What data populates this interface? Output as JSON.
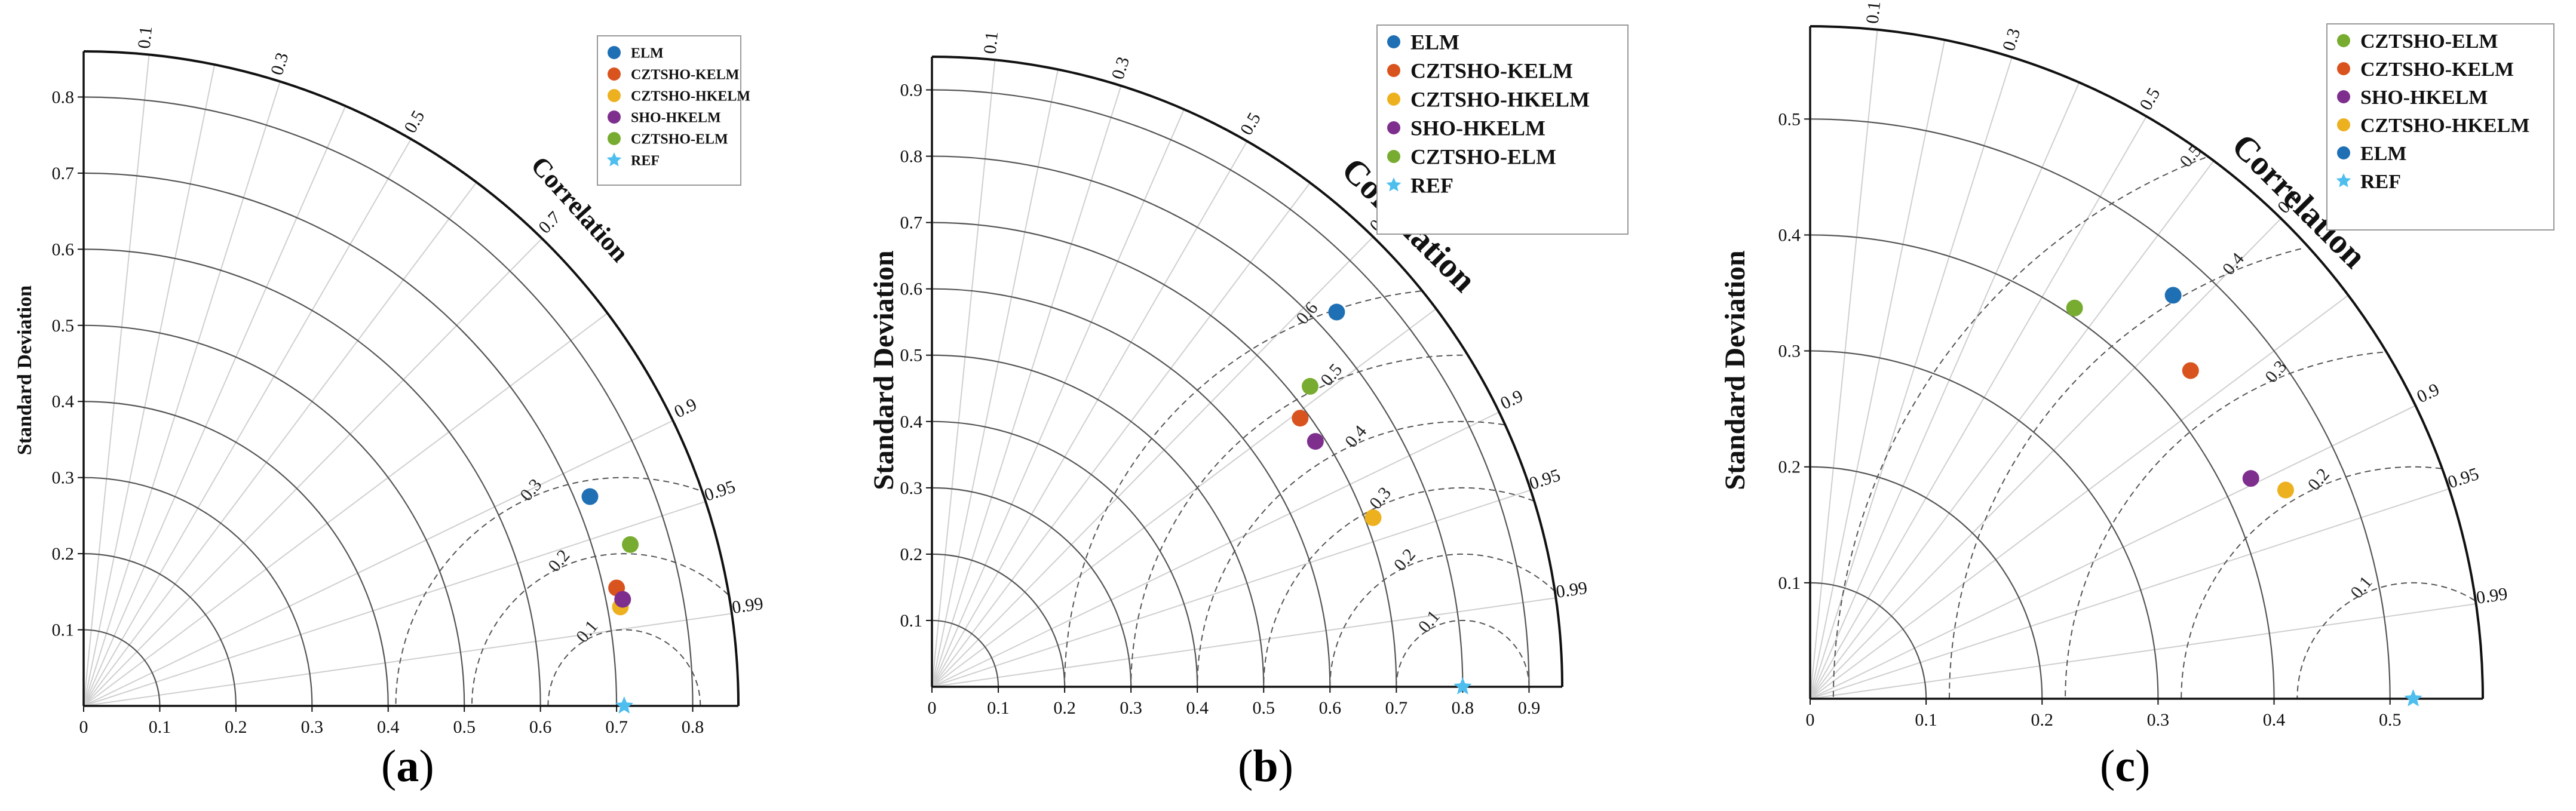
{
  "figure": {
    "panel_labels": [
      "(a)",
      "(b)",
      "(c)"
    ],
    "panel_letters": [
      "a",
      "b",
      "c"
    ]
  },
  "colors": {
    "ELM": "#1f6fb4",
    "CZTSHO-KELM": "#d9531e",
    "CZTSHO-HKELM": "#edb120",
    "SHO-HKELM": "#7e2f8e",
    "CZTSHO-ELM": "#77ac30",
    "REF": "#4dbeee"
  },
  "chart_data": [
    {
      "type": "scatter",
      "subtype": "taylor-diagram",
      "panel": "a",
      "ylabel": "Standard Deviation",
      "correlation_label": "Correlation",
      "std_max": 0.86,
      "std_ticks": [
        0.1,
        0.2,
        0.3,
        0.4,
        0.5,
        0.6,
        0.7,
        0.8
      ],
      "x_tick_labels": [
        "0",
        "0.1",
        "0.2",
        "0.3",
        "0.4",
        "0.5",
        "0.6",
        "0.7",
        "0.8"
      ],
      "y_tick_labels": [
        "0.1",
        "0.2",
        "0.3",
        "0.4",
        "0.5",
        "0.6",
        "0.7",
        "0.8"
      ],
      "correlation_ticks": [
        0.1,
        0.3,
        0.5,
        0.7,
        0.9,
        0.95,
        0.99
      ],
      "correlation_tick_labels": [
        "0.1",
        "0.3",
        "0.5",
        "0.7",
        "0.9",
        "0.95",
        "0.99"
      ],
      "rms_arcs": [
        0.1,
        0.2,
        0.3
      ],
      "rms_labels": [
        "0.1",
        "0.2",
        "0.3"
      ],
      "reference_std": 0.71,
      "legend_position": "top-right",
      "series": [
        {
          "name": "ELM",
          "x": 0.665,
          "y": 0.275
        },
        {
          "name": "CZTSHO-KELM",
          "x": 0.7,
          "y": 0.155
        },
        {
          "name": "CZTSHO-HKELM",
          "x": 0.705,
          "y": 0.13
        },
        {
          "name": "SHO-HKELM",
          "x": 0.708,
          "y": 0.14
        },
        {
          "name": "CZTSHO-ELM",
          "x": 0.718,
          "y": 0.212
        },
        {
          "name": "REF",
          "x": 0.71,
          "y": 0.0,
          "marker": "star"
        }
      ]
    },
    {
      "type": "scatter",
      "subtype": "taylor-diagram",
      "panel": "b",
      "ylabel": "Standard Deviation",
      "correlation_label": "Correlation",
      "std_max": 0.95,
      "std_ticks": [
        0.1,
        0.2,
        0.3,
        0.4,
        0.5,
        0.6,
        0.7,
        0.8,
        0.9
      ],
      "x_tick_labels": [
        "0",
        "0.1",
        "0.2",
        "0.3",
        "0.4",
        "0.5",
        "0.6",
        "0.7",
        "0.8",
        "0.9"
      ],
      "y_tick_labels": [
        "0.1",
        "0.2",
        "0.3",
        "0.4",
        "0.5",
        "0.6",
        "0.7",
        "0.8",
        "0.9"
      ],
      "correlation_ticks": [
        0.1,
        0.3,
        0.5,
        0.7,
        0.9,
        0.95,
        0.99
      ],
      "correlation_tick_labels": [
        "0.1",
        "0.3",
        "0.5",
        "0.7",
        "0.9",
        "0.95",
        "0.99"
      ],
      "rms_arcs": [
        0.1,
        0.2,
        0.3,
        0.4,
        0.5,
        0.6
      ],
      "rms_labels": [
        "0.1",
        "0.2",
        "0.3",
        "0.4",
        "0.5",
        "0.6"
      ],
      "reference_std": 0.8,
      "legend_position": "top-right",
      "series": [
        {
          "name": "ELM",
          "x": 0.61,
          "y": 0.565
        },
        {
          "name": "CZTSHO-KELM",
          "x": 0.555,
          "y": 0.405
        },
        {
          "name": "CZTSHO-HKELM",
          "x": 0.665,
          "y": 0.255
        },
        {
          "name": "SHO-HKELM",
          "x": 0.578,
          "y": 0.37
        },
        {
          "name": "CZTSHO-ELM",
          "x": 0.57,
          "y": 0.453
        },
        {
          "name": "REF",
          "x": 0.8,
          "y": 0.0,
          "marker": "star"
        }
      ]
    },
    {
      "type": "scatter",
      "subtype": "taylor-diagram",
      "panel": "c",
      "ylabel": "Standard Deviation",
      "correlation_label": "Correlation",
      "std_max": 0.58,
      "std_ticks": [
        0.1,
        0.2,
        0.3,
        0.4,
        0.5
      ],
      "x_tick_labels": [
        "0",
        "0.1",
        "0.2",
        "0.3",
        "0.4",
        "0.5"
      ],
      "y_tick_labels": [
        "0.1",
        "0.2",
        "0.3",
        "0.4",
        "0.5"
      ],
      "correlation_ticks": [
        0.1,
        0.3,
        0.5,
        0.7,
        0.9,
        0.95,
        0.99
      ],
      "correlation_tick_labels": [
        "0.1",
        "0.3",
        "0.5",
        "0.7",
        "0.9",
        "0.95",
        "0.99"
      ],
      "rms_arcs": [
        0.1,
        0.2,
        0.3,
        0.4,
        0.5
      ],
      "rms_labels": [
        "0.1",
        "0.2",
        "0.3",
        "0.4",
        "0.5"
      ],
      "reference_std": 0.52,
      "legend_position": "top-right",
      "series": [
        {
          "name": "CZTSHO-ELM",
          "x": 0.228,
          "y": 0.337
        },
        {
          "name": "CZTSHO-KELM",
          "x": 0.328,
          "y": 0.283
        },
        {
          "name": "SHO-HKELM",
          "x": 0.38,
          "y": 0.19
        },
        {
          "name": "CZTSHO-HKELM",
          "x": 0.41,
          "y": 0.18
        },
        {
          "name": "ELM",
          "x": 0.313,
          "y": 0.348
        },
        {
          "name": "REF",
          "x": 0.52,
          "y": 0.0,
          "marker": "star"
        }
      ]
    }
  ]
}
